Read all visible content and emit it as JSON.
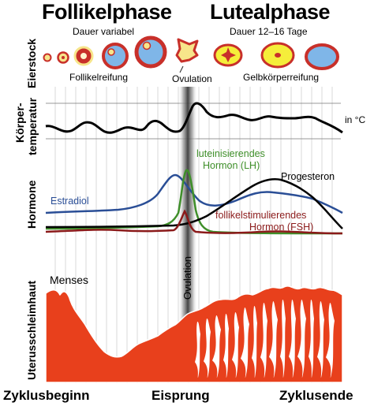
{
  "phases": {
    "follicular": {
      "title": "Follikelphase",
      "duration": "Dauer variabel"
    },
    "luteal": {
      "title": "Lutealphase",
      "duration": "Dauer 12–16 Tage"
    }
  },
  "rows": {
    "ovary": "Eierstock",
    "temperature": "Körper-\ntemperatur",
    "temperature_line1": "Körper-",
    "temperature_line2": "temperatur",
    "hormones": "Hormone",
    "endometrium": "Uterusschleimhaut"
  },
  "ovary_labels": {
    "maturation": "Follikelreifung",
    "ovulation": "Ovulation",
    "corpus_luteum": "Gelbkörperreifung"
  },
  "temperature_unit": "in °C",
  "hormones": {
    "estradiol": {
      "name": "Estradiol",
      "color": "#2a4e96"
    },
    "lh": {
      "line1": "luteinisierendes",
      "line2": "Hormon (LH)",
      "color": "#3f8f2a"
    },
    "progesterone": {
      "name": "Progesteron",
      "color": "#000000"
    },
    "fsh": {
      "line1": "follikelstimulierendes",
      "line2": "Hormon (FSH)",
      "color": "#8b1a1a"
    }
  },
  "menses_label": "Menses",
  "ovulation_band_label": "Ovulation",
  "axis": {
    "start": "Zyklusbeginn",
    "middle": "Eisprung",
    "end": "Zyklusende"
  },
  "colors": {
    "endometrium": "#e8401c",
    "follicle_fill": "#c8302a",
    "follicle_blue": "#7fb6e8",
    "corpus_luteum": "#f5ee3a",
    "ovary_ring": "#f7e58a"
  }
}
